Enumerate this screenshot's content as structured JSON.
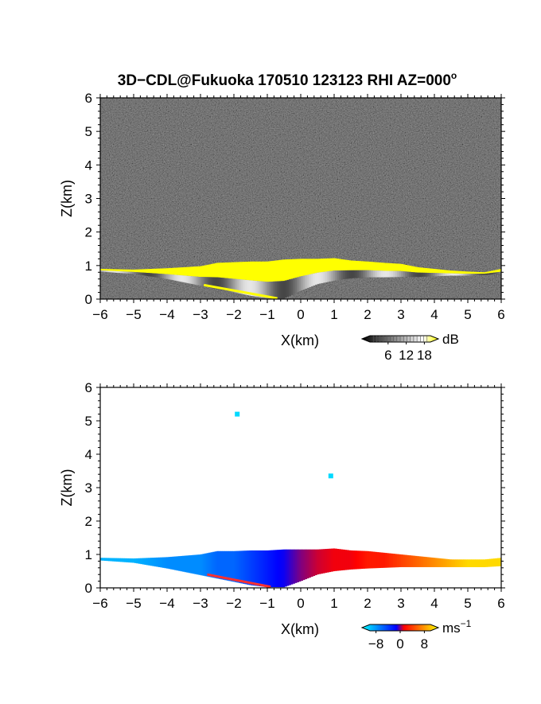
{
  "title": "3D−CDL@Fukuoka 170510 123123 RHI AZ=000",
  "title_degree_mark": "o",
  "chart_data": [
    {
      "type": "heatmap",
      "panel": "top",
      "quantity": "backscatter intensity",
      "xlabel": "X(km)",
      "ylabel": "Z(km)",
      "xlim": [
        -6,
        6
      ],
      "ylim": [
        0,
        6
      ],
      "xticks": [
        "−6",
        "−5",
        "−4",
        "−3",
        "−2",
        "−1",
        "0",
        "1",
        "2",
        "3",
        "4",
        "5",
        "6"
      ],
      "yticks": [
        "0",
        "1",
        "2",
        "3",
        "4",
        "5",
        "6"
      ],
      "background": "noise",
      "colorbar": {
        "unit": "dB",
        "ticks": [
          "6",
          "12",
          "18"
        ],
        "range": [
          0,
          20
        ],
        "colors": [
          "#000000",
          "#ffffff",
          "#ffff00"
        ]
      },
      "echo_layer": {
        "x": [
          -6,
          -5,
          -4,
          -3,
          -2.5,
          -2,
          -1.5,
          -1,
          -0.5,
          0,
          0.5,
          1,
          1.5,
          2,
          2.5,
          3,
          3.5,
          4,
          4.5,
          5,
          5.5,
          6
        ],
        "top_km": [
          0.9,
          0.88,
          0.92,
          0.98,
          1.08,
          1.1,
          1.12,
          1.12,
          1.18,
          1.2,
          1.2,
          1.22,
          1.15,
          1.12,
          1.08,
          1.05,
          0.95,
          0.9,
          0.85,
          0.82,
          0.8,
          0.9
        ],
        "bottom_km": [
          0.82,
          0.75,
          0.6,
          0.4,
          0.3,
          0.2,
          0.1,
          0.02,
          0.02,
          0.25,
          0.45,
          0.55,
          0.62,
          0.65,
          0.65,
          0.66,
          0.66,
          0.68,
          0.7,
          0.7,
          0.72,
          0.75
        ]
      }
    },
    {
      "type": "heatmap",
      "panel": "bottom",
      "quantity": "Doppler velocity",
      "xlabel": "X(km)",
      "ylabel": "Z(km)",
      "xlim": [
        -6,
        6
      ],
      "ylim": [
        0,
        6
      ],
      "xticks": [
        "−6",
        "−5",
        "−4",
        "−3",
        "−2",
        "−1",
        "0",
        "1",
        "2",
        "3",
        "4",
        "5",
        "6"
      ],
      "yticks": [
        "0",
        "1",
        "2",
        "3",
        "4",
        "5",
        "6"
      ],
      "colorbar": {
        "unit": "ms",
        "unit_exponent": "−1",
        "ticks": [
          "−8",
          "0",
          "8"
        ],
        "range": [
          -10,
          10
        ],
        "colors": [
          "#00ffff",
          "#0000ff",
          "#ff0000",
          "#ffff00"
        ]
      },
      "echo_layer": {
        "x": [
          -6,
          -5,
          -4,
          -3,
          -2.5,
          -2,
          -1.5,
          -1,
          -0.5,
          0,
          0.5,
          1,
          1.5,
          2,
          2.5,
          3,
          3.5,
          4,
          4.5,
          5,
          5.5,
          6
        ],
        "top_km": [
          0.9,
          0.88,
          0.92,
          1.0,
          1.1,
          1.1,
          1.12,
          1.12,
          1.15,
          1.15,
          1.15,
          1.18,
          1.12,
          1.1,
          1.05,
          1.0,
          0.95,
          0.9,
          0.85,
          0.85,
          0.85,
          0.9
        ],
        "bottom_km": [
          0.82,
          0.75,
          0.58,
          0.38,
          0.28,
          0.18,
          0.08,
          0.02,
          0.02,
          0.2,
          0.4,
          0.5,
          0.55,
          0.58,
          0.6,
          0.62,
          0.62,
          0.62,
          0.62,
          0.62,
          0.62,
          0.65
        ],
        "velocity_mps": [
          -8,
          -8,
          -7,
          -7,
          -6,
          -6,
          -5,
          -4,
          -3,
          0,
          2,
          3,
          3,
          4,
          4,
          5,
          6,
          7,
          8,
          9,
          9,
          9
        ]
      },
      "isolated_points": [
        {
          "x": -1.9,
          "y": 5.2,
          "velocity_mps": -9
        },
        {
          "x": 0.9,
          "y": 3.35,
          "velocity_mps": -9
        }
      ]
    }
  ]
}
